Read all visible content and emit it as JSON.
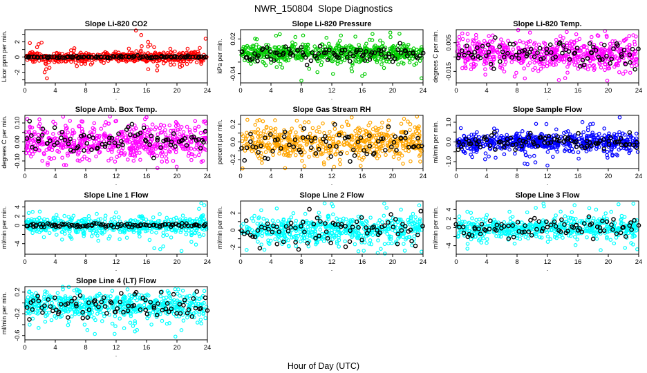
{
  "figure_title": "NWR_150804  Slope Diagnostics",
  "x_axis_label": "Hour of Day (UTC)",
  "layout": {
    "columns": 3,
    "rows": 4,
    "background": "#ffffff",
    "axis_color": "#000000"
  },
  "chart_data": [
    {
      "type": "scatter",
      "title": "Slope Li-820 CO2",
      "ylabel": "Licor ppm per min.",
      "xlabel": ".",
      "point_color": "#FF0000",
      "overlay_color": "#000000",
      "x_range": [
        0,
        24
      ],
      "xticks": [
        0,
        4,
        8,
        12,
        16,
        20,
        24
      ],
      "ylim": [
        -3.4,
        3.6
      ],
      "yticks": [
        {
          "v": 3,
          "label": ""
        },
        {
          "v": 2,
          "label": "2"
        },
        {
          "v": 1,
          "label": ""
        },
        {
          "v": 0,
          "label": "0"
        },
        {
          "v": -1,
          "label": ""
        },
        {
          "v": -2,
          "label": "-2"
        },
        {
          "v": -3,
          "label": ""
        }
      ],
      "n_points": 580,
      "y_center": 0,
      "y_sd": 0.3,
      "outliers": [
        [
          2.9,
          -2.8
        ],
        [
          2.6,
          -2.0
        ],
        [
          2.8,
          -1.6
        ],
        [
          2.2,
          1.9
        ],
        [
          1.8,
          1.7
        ],
        [
          1.6,
          1.3
        ],
        [
          14.6,
          3.5
        ],
        [
          15.3,
          2.9
        ],
        [
          16.2,
          2.0
        ],
        [
          16.5,
          1.6
        ],
        [
          17.0,
          1.3
        ],
        [
          23.0,
          1.2
        ],
        [
          21.4,
          1.1
        ]
      ],
      "overlay": {
        "n": 95,
        "center": 0,
        "sd": 0.07
      }
    },
    {
      "type": "scatter",
      "title": "Slope Li-820 Pressure",
      "ylabel": "kPa per min.",
      "xlabel": ".",
      "point_color": "#00CC00",
      "overlay_color": "#000000",
      "x_range": [
        0,
        24
      ],
      "xticks": [
        0,
        4,
        8,
        12,
        16,
        20,
        24
      ],
      "ylim": [
        -0.056,
        0.036
      ],
      "yticks": [
        {
          "v": 0.02,
          "label": "0.02"
        },
        {
          "v": 0.0,
          "label": ""
        },
        {
          "v": -0.02,
          "label": ""
        },
        {
          "v": -0.04,
          "label": "-0.04"
        }
      ],
      "n_points": 580,
      "y_center": -0.005,
      "y_sd": 0.0075,
      "outliers": [
        [
          8.0,
          -0.052
        ],
        [
          16.0,
          -0.044
        ],
        [
          23.8,
          -0.048
        ],
        [
          19.7,
          0.031
        ],
        [
          13.2,
          0.026
        ],
        [
          15.1,
          0.024
        ],
        [
          20.9,
          0.029
        ],
        [
          11.3,
          0.022
        ]
      ],
      "overlay": {
        "n": 90,
        "center": -0.006,
        "sd": 0.008
      }
    },
    {
      "type": "scatter",
      "title": "Slope Li-820 Temp.",
      "ylabel": "degrees C per min.",
      "xlabel": ".",
      "point_color": "#FF00FF",
      "overlay_color": "#000000",
      "x_range": [
        0,
        24
      ],
      "xticks": [
        0,
        4,
        8,
        12,
        16,
        20,
        24
      ],
      "ylim": [
        -0.023,
        0.014
      ],
      "yticks": [
        {
          "v": 0.005,
          "label": "0.005"
        },
        {
          "v": -0.005,
          "label": ""
        },
        {
          "v": -0.015,
          "label": "-0.015"
        }
      ],
      "n_points": 600,
      "y_center": -0.003,
      "y_sd": 0.005,
      "outliers": [
        [
          13.5,
          -0.021
        ],
        [
          20.0,
          -0.013
        ],
        [
          1.5,
          0.011
        ],
        [
          9.7,
          0.012
        ],
        [
          4.8,
          0.01
        ],
        [
          0.4,
          0.009
        ],
        [
          19.8,
          0.009
        ],
        [
          7.9,
          -0.016
        ]
      ],
      "overlay": {
        "n": 85,
        "center": -0.003,
        "sd": 0.004
      }
    },
    {
      "type": "scatter",
      "title": "Slope Amb. Box Temp.",
      "ylabel": "degrees C per min.",
      "xlabel": ".",
      "point_color": "#FF00FF",
      "overlay_color": "#000000",
      "x_range": [
        0,
        24
      ],
      "xticks": [
        0,
        4,
        8,
        12,
        16,
        20,
        24
      ],
      "ylim": [
        -0.14,
        0.14
      ],
      "yticks": [
        {
          "v": 0.1,
          "label": "0.10"
        },
        {
          "v": 0.05,
          "label": ""
        },
        {
          "v": 0.0,
          "label": "0.00"
        },
        {
          "v": -0.05,
          "label": ""
        },
        {
          "v": -0.1,
          "label": "-0.10"
        }
      ],
      "n_points": 600,
      "y_center": 0,
      "y_sd": 0.042,
      "outliers": [
        [
          16.0,
          0.13
        ],
        [
          4.0,
          0.095
        ],
        [
          11.0,
          0.096
        ],
        [
          15.8,
          0.12
        ],
        [
          3.0,
          -0.12
        ],
        [
          7.2,
          -0.1
        ],
        [
          21.9,
          -0.095
        ]
      ],
      "overlay": {
        "n": 80,
        "center": 0,
        "sd": 0.04
      }
    },
    {
      "type": "scatter",
      "title": "Slope Gas Stream RH",
      "ylabel": "percent per min.",
      "xlabel": ".",
      "point_color": "#FFA500",
      "overlay_color": "#000000",
      "x_range": [
        0,
        24
      ],
      "xticks": [
        0,
        4,
        8,
        12,
        16,
        20,
        24
      ],
      "ylim": [
        -0.3,
        0.3
      ],
      "yticks": [
        {
          "v": 0.2,
          "label": "0.2"
        },
        {
          "v": 0.1,
          "label": ""
        },
        {
          "v": 0.0,
          "label": "0.0"
        },
        {
          "v": -0.1,
          "label": ""
        },
        {
          "v": -0.2,
          "label": "-0.2"
        }
      ],
      "n_points": 560,
      "y_center": 0,
      "y_sd": 0.09,
      "outliers": [
        [
          12.3,
          -0.28
        ],
        [
          15.8,
          -0.27
        ],
        [
          0.9,
          0.25
        ],
        [
          2.2,
          0.24
        ],
        [
          21.5,
          0.26
        ],
        [
          7.4,
          0.24
        ],
        [
          13.1,
          -0.25
        ]
      ],
      "overlay": {
        "n": 75,
        "center": -0.02,
        "sd": 0.09
      }
    },
    {
      "type": "scatter",
      "title": "Slope Sample Flow",
      "ylabel": "ml/min per min.",
      "xlabel": ".",
      "point_color": "#0000FF",
      "overlay_color": "#000000",
      "x_range": [
        0,
        24
      ],
      "xticks": [
        0,
        4,
        8,
        12,
        16,
        20,
        24
      ],
      "ylim": [
        -1.35,
        1.35
      ],
      "yticks": [
        {
          "v": 1.0,
          "label": "1.0"
        },
        {
          "v": 0.5,
          "label": ""
        },
        {
          "v": 0.0,
          "label": "0.0"
        },
        {
          "v": -0.5,
          "label": ""
        },
        {
          "v": -1.0,
          "label": "-1.0"
        }
      ],
      "n_points": 600,
      "y_center": 0,
      "y_sd": 0.22,
      "outliers": [
        [
          12.0,
          -1.2
        ],
        [
          9.0,
          -1.1
        ],
        [
          21.5,
          1.25
        ],
        [
          10.5,
          0.92
        ],
        [
          3.8,
          -0.88
        ],
        [
          16.1,
          -0.85
        ],
        [
          19.9,
          -0.8
        ]
      ],
      "overlay": {
        "n": 85,
        "center": 0,
        "sd": 0.22
      }
    },
    {
      "type": "scatter",
      "title": "Slope Line 1 Flow",
      "ylabel": "ml/min per min.",
      "xlabel": ".",
      "point_color": "#00FFFF",
      "overlay_color": "#000000",
      "x_range": [
        0,
        24
      ],
      "xticks": [
        0,
        4,
        8,
        12,
        16,
        20,
        24
      ],
      "ylim": [
        -6.3,
        5.3
      ],
      "yticks": [
        {
          "v": 4,
          "label": "4"
        },
        {
          "v": 2,
          "label": "2"
        },
        {
          "v": 0,
          "label": "0"
        },
        {
          "v": -2,
          "label": ""
        },
        {
          "v": -4,
          "label": "-4"
        }
      ],
      "n_points": 580,
      "y_center": 0,
      "y_sd": 0.85,
      "outliers": [
        [
          23.2,
          4.8
        ],
        [
          23.6,
          4.4
        ],
        [
          22.9,
          3.6
        ],
        [
          17.8,
          -5.2
        ],
        [
          18.2,
          -4.6
        ],
        [
          22.5,
          -4.2
        ],
        [
          21.9,
          -3.6
        ],
        [
          16.4,
          -3.2
        ],
        [
          2.5,
          -2.6
        ],
        [
          0.5,
          2.7
        ],
        [
          20.6,
          -5.6
        ]
      ],
      "overlay": {
        "n": 95,
        "center": 0,
        "sd": 0.2
      }
    },
    {
      "type": "scatter",
      "title": "Slope Line 2 Flow",
      "ylabel": "ml/min per min.",
      "xlabel": ".",
      "point_color": "#00FFFF",
      "overlay_color": "#000000",
      "x_range": [
        0,
        24
      ],
      "xticks": [
        0,
        4,
        8,
        12,
        16,
        20,
        24
      ],
      "ylim": [
        -2.8,
        3.4
      ],
      "yticks": [
        {
          "v": 2,
          "label": "2"
        },
        {
          "v": 1,
          "label": ""
        },
        {
          "v": 0,
          "label": "0"
        },
        {
          "v": -1,
          "label": ""
        },
        {
          "v": -2,
          "label": "-2"
        }
      ],
      "n_points": 560,
      "y_center": 0,
      "y_sd": 0.75,
      "outliers": [
        [
          18.9,
          3.1
        ],
        [
          23.5,
          2.9
        ],
        [
          19.2,
          2.6
        ],
        [
          23.8,
          -2.5
        ],
        [
          0.8,
          -2.3
        ],
        [
          16.2,
          -2.4
        ],
        [
          21.1,
          2.4
        ]
      ],
      "overlay": {
        "n": 80,
        "center": 0,
        "sd": 0.9
      }
    },
    {
      "type": "scatter",
      "title": "Slope Line 3 Flow",
      "ylabel": "ml/min per min.",
      "xlabel": ".",
      "point_color": "#00FFFF",
      "overlay_color": "#000000",
      "x_range": [
        0,
        24
      ],
      "xticks": [
        0,
        4,
        8,
        12,
        16,
        20,
        24
      ],
      "ylim": [
        -5.9,
        5.9
      ],
      "yticks": [
        {
          "v": 4,
          "label": "4"
        },
        {
          "v": 2,
          "label": "2"
        },
        {
          "v": 0,
          "label": "0"
        },
        {
          "v": -2,
          "label": ""
        },
        {
          "v": -4,
          "label": "-4"
        }
      ],
      "n_points": 560,
      "y_center": 0,
      "y_sd": 1.1,
      "outliers": [
        [
          23.3,
          5.3
        ],
        [
          17.5,
          4.3
        ],
        [
          19.0,
          -5.0
        ],
        [
          22.2,
          -4.5
        ],
        [
          1.5,
          -3.6
        ],
        [
          23.8,
          -4.8
        ],
        [
          18.4,
          4.0
        ],
        [
          4.0,
          -3.4
        ]
      ],
      "overlay": {
        "n": 80,
        "center": 0,
        "sd": 1.2
      }
    },
    {
      "type": "scatter",
      "title": "Slope Line 4 (LT) Flow",
      "ylabel": "ml/min per min.",
      "xlabel": ".",
      "point_color": "#00FFFF",
      "overlay_color": "#000000",
      "x_range": [
        0,
        24
      ],
      "xticks": [
        0,
        4,
        8,
        12,
        16,
        20,
        24
      ],
      "ylim": [
        -0.68,
        0.3
      ],
      "yticks": [
        {
          "v": 0.2,
          "label": "0.2"
        },
        {
          "v": 0.0,
          "label": ""
        },
        {
          "v": -0.2,
          "label": "-0.2"
        },
        {
          "v": -0.4,
          "label": ""
        },
        {
          "v": -0.6,
          "label": "-0.6"
        }
      ],
      "n_points": 580,
      "y_center": -0.05,
      "y_sd": 0.12,
      "outliers": [
        [
          11.8,
          -0.57
        ],
        [
          19.8,
          -0.62
        ],
        [
          1.8,
          -0.46
        ],
        [
          13.5,
          0.25
        ],
        [
          23.6,
          0.22
        ],
        [
          6.5,
          0.23
        ],
        [
          0.6,
          0.21
        ]
      ],
      "overlay": {
        "n": 85,
        "center": -0.05,
        "sd": 0.11
      }
    }
  ]
}
